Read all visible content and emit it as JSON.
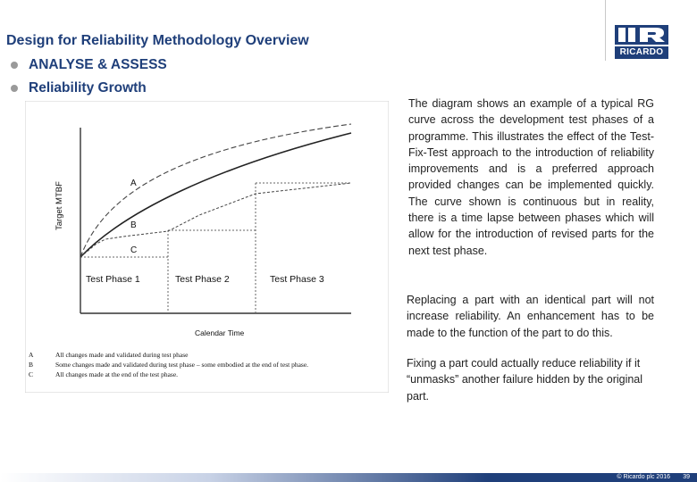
{
  "slide": {
    "title": "Design for Reliability Methodology Overview",
    "bullets": [
      "ANALYSE & ASSESS",
      "Reliability Growth"
    ]
  },
  "logo": {
    "text": "RICARDO",
    "brand_color": "#1f3f7a"
  },
  "diagram": {
    "y_axis_label": "Target MTBF",
    "x_axis_label": "Calendar Time",
    "curve_labels": [
      "A",
      "B",
      "C"
    ],
    "phases": [
      "Test Phase 1",
      "Test Phase 2",
      "Test Phase 3"
    ],
    "legend": [
      {
        "key": "A",
        "text": "All changes made and validated during test phase"
      },
      {
        "key": "B",
        "text": "Some changes made and validated during test phase – some embodied at the end of test phase."
      },
      {
        "key": "C",
        "text": "All changes made at the end of the test phase."
      }
    ]
  },
  "body_paragraphs": [
    "The diagram shows an example of a typical RG curve across the development test phases of a programme. This illustrates the effect of the Test-Fix-Test approach to the introduction of reliability improvements and is a preferred approach provided changes can be implemented quickly. The curve shown is continuous but in reality, there is a time lapse between phases which will allow for the introduction of revised parts for the next test phase.",
    "Replacing a part with an identical part will not increase reliability. An enhancement has to be made to the function of the part to do this.",
    "Fixing a part could actually reduce reliability if it “unmasks” another failure hidden by the original part."
  ],
  "footer": {
    "copyright": "© Ricardo plc 2016",
    "page": "39"
  }
}
